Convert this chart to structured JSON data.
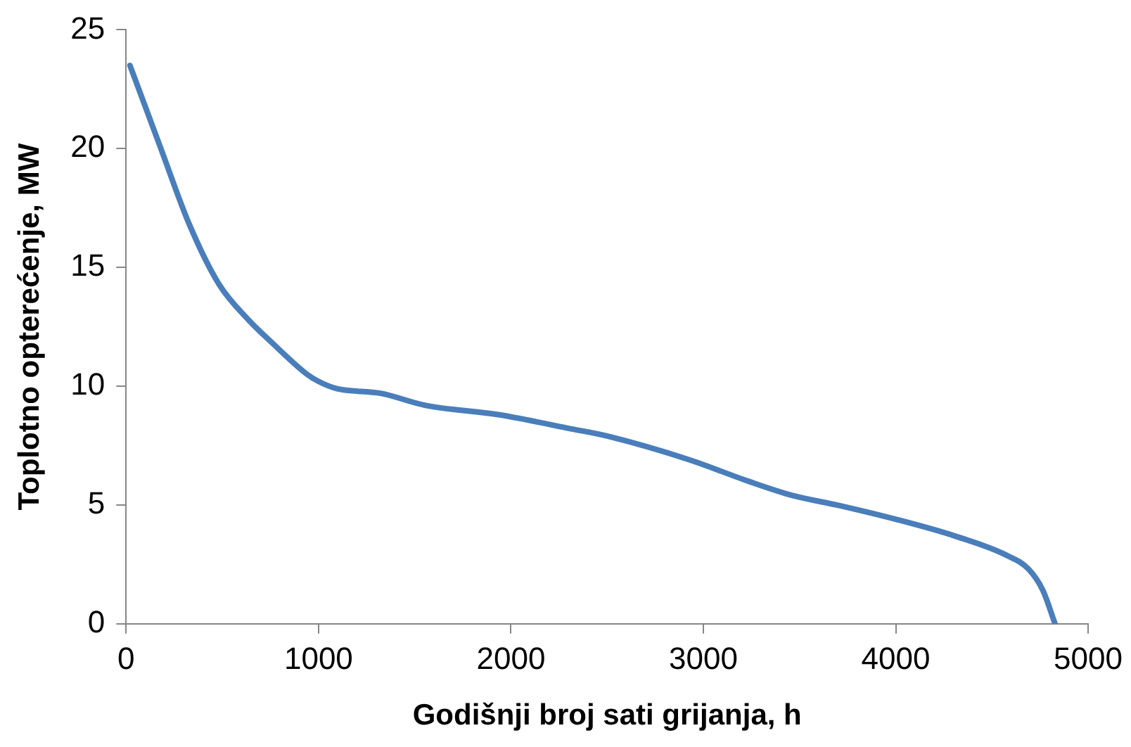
{
  "chart_data": {
    "type": "line",
    "xlabel": "Godišnji broj sati grijanja, h",
    "ylabel": "Toplotno opterećenje, MW",
    "x": [
      20,
      176,
      329,
      482,
      635,
      749,
      940,
      1000,
      1093,
      1323,
      1552,
      1935,
      2317,
      2500,
      2928,
      3234,
      3463,
      3693,
      3999,
      4305,
      4572,
      4690,
      4765,
      4828
    ],
    "series": [
      {
        "color": "#4a7ebb",
        "values": [
          23.5,
          20.1,
          16.8,
          14.3,
          12.8,
          11.9,
          10.5,
          10.2,
          9.9,
          9.7,
          9.2,
          8.8,
          8.2,
          7.9,
          6.9,
          6.0,
          5.4,
          5.0,
          4.4,
          3.7,
          2.9,
          2.3,
          1.4,
          0
        ]
      }
    ],
    "xlim": [
      0,
      5000
    ],
    "xticks": [
      0,
      1000,
      2000,
      3000,
      4000,
      5000
    ],
    "ylim": [
      0,
      25
    ],
    "yticks": [
      0,
      5,
      10,
      15,
      20,
      25
    ],
    "grid": false,
    "legend": false,
    "marker": "none",
    "line_style": "solid"
  }
}
